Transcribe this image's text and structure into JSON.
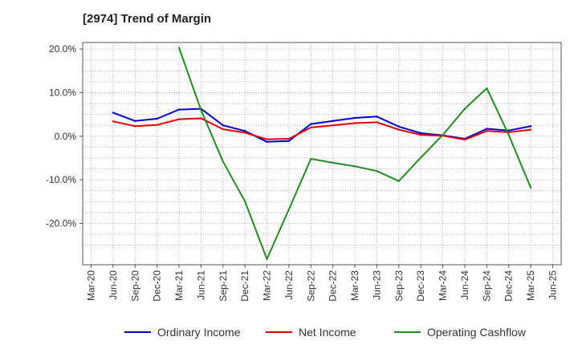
{
  "chart_data": {
    "type": "line",
    "title": "[2974]  Trend of Margin",
    "xlabel": "",
    "ylabel": "",
    "categories": [
      "Mar-20",
      "Jun-20",
      "Sep-20",
      "Dec-20",
      "Mar-21",
      "Jun-21",
      "Sep-21",
      "Dec-21",
      "Mar-22",
      "Jun-22",
      "Sep-22",
      "Dec-22",
      "Mar-23",
      "Jun-23",
      "Sep-23",
      "Dec-23",
      "Mar-24",
      "Jun-24",
      "Sep-24",
      "Dec-24",
      "Mar-25",
      "Jun-25"
    ],
    "y_ticks": [
      20.0,
      10.0,
      0.0,
      -10.0,
      -20.0
    ],
    "y_tick_labels": [
      "20.0%",
      "10.0%",
      "0.0%",
      "-10.0%",
      "-20.0%"
    ],
    "ylim": [
      -29.5,
      21.5
    ],
    "grid": true,
    "legend_position": "bottom",
    "series": [
      {
        "name": "Ordinary Income",
        "color": "#0000cc",
        "values": [
          null,
          5.4,
          3.5,
          4.0,
          6.1,
          6.3,
          2.5,
          1.2,
          -1.3,
          -1.1,
          2.8,
          3.5,
          4.2,
          4.5,
          2.2,
          0.7,
          0.2,
          -0.6,
          1.7,
          1.3,
          2.3,
          null
        ]
      },
      {
        "name": "Net Income",
        "color": "#e00000",
        "values": [
          null,
          3.4,
          2.3,
          2.6,
          3.9,
          4.1,
          1.6,
          0.8,
          -0.7,
          -0.6,
          2.0,
          2.5,
          3.0,
          3.2,
          1.5,
          0.3,
          0.1,
          -0.8,
          1.2,
          0.9,
          1.5,
          null
        ]
      },
      {
        "name": "Operating Cashflow",
        "color": "#228b22",
        "values": [
          null,
          null,
          null,
          null,
          20.3,
          6.0,
          -5.8,
          -15.0,
          -28.2,
          -16.8,
          -5.2,
          -6.1,
          -6.9,
          -8.0,
          -10.3,
          -4.9,
          0.3,
          6.3,
          11.0,
          0.3,
          -11.8,
          null
        ]
      }
    ]
  }
}
